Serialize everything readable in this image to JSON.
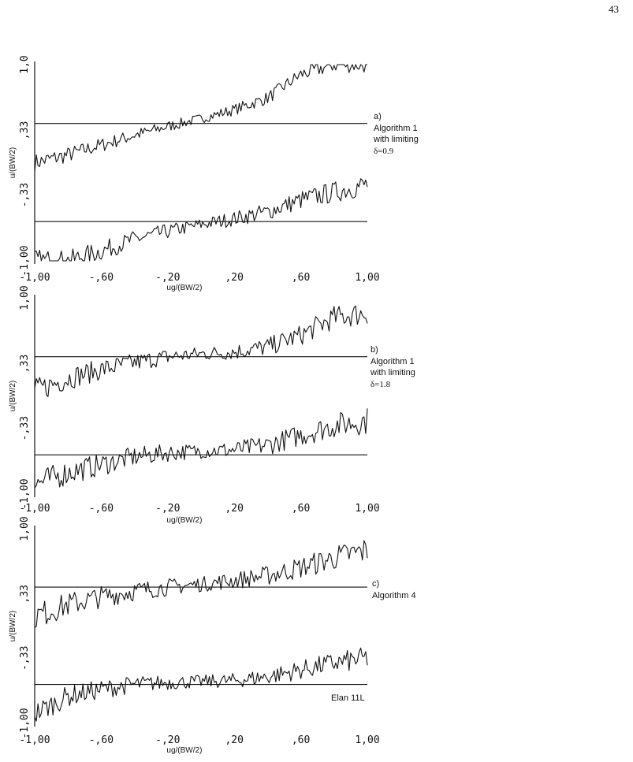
{
  "page_number": "43",
  "footnote": "Elan 11L",
  "chart_data": [
    {
      "type": "line",
      "panel": "a)",
      "annotation": [
        "a)",
        "Algorithm 1",
        "with limiting",
        "δ=0.9"
      ],
      "xlabel": "ug/(BW/2)",
      "ylabel": "u/(BW/2)",
      "xlim": [
        -1.0,
        1.0
      ],
      "ylim": [
        -1.0,
        1.0
      ],
      "xticks": [
        "-1,00",
        "-,60",
        "-,20",
        ",20",
        ",60",
        "1,00"
      ],
      "yticks": [
        "-1,00",
        "-,33",
        ",33",
        "1,0"
      ],
      "reference_lines": [
        0.4,
        -0.6
      ],
      "grid": false,
      "series": [
        {
          "x": [
            -1.0,
            -0.8,
            -0.6,
            -0.4,
            -0.2,
            0.0,
            0.2,
            0.4,
            0.6,
            0.8,
            1.0
          ],
          "y": [
            0.0,
            0.08,
            0.18,
            0.28,
            0.37,
            0.45,
            0.54,
            0.66,
            0.9,
            1.0,
            1.0
          ]
        },
        {
          "x": [
            -1.0,
            -0.8,
            -0.6,
            -0.4,
            -0.2,
            0.0,
            0.2,
            0.4,
            0.6,
            0.8,
            1.0
          ],
          "y": [
            -1.0,
            -1.0,
            -0.9,
            -0.78,
            -0.7,
            -0.63,
            -0.57,
            -0.5,
            -0.38,
            -0.3,
            -0.22
          ]
        }
      ]
    },
    {
      "type": "line",
      "panel": "b)",
      "annotation": [
        "b)",
        "Algorithm 1",
        "with limiting",
        "δ=1.8"
      ],
      "xlabel": "ug/(BW/2)",
      "ylabel": "u/(BW/2)",
      "xlim": [
        -1.0,
        1.0
      ],
      "ylim": [
        -1.0,
        1.0
      ],
      "xticks": [
        "-1,00",
        "-,60",
        "-,20",
        ",20",
        ",60",
        "1,00"
      ],
      "yticks": [
        "-1,00",
        "-,33",
        ",33",
        "1,00"
      ],
      "reference_lines": [
        0.4,
        -0.6
      ],
      "grid": false,
      "series": [
        {
          "x": [
            -1.0,
            -0.8,
            -0.6,
            -0.4,
            -0.2,
            0.0,
            0.2,
            0.4,
            0.6,
            0.8,
            1.0
          ],
          "y": [
            0.05,
            0.18,
            0.27,
            0.34,
            0.4,
            0.43,
            0.45,
            0.5,
            0.62,
            0.8,
            0.85
          ]
        },
        {
          "x": [
            -1.0,
            -0.8,
            -0.6,
            -0.4,
            -0.2,
            0.0,
            0.2,
            0.4,
            0.6,
            0.8,
            1.0
          ],
          "y": [
            -0.9,
            -0.78,
            -0.7,
            -0.62,
            -0.58,
            -0.56,
            -0.55,
            -0.5,
            -0.4,
            -0.3,
            -0.25
          ]
        }
      ]
    },
    {
      "type": "line",
      "panel": "c)",
      "annotation": [
        "c)",
        "Algorithm 4"
      ],
      "xlabel": "ug/(BW/2)",
      "ylabel": "u/(BW/2)",
      "xlim": [
        -1.0,
        1.0
      ],
      "ylim": [
        -1.0,
        1.0
      ],
      "xticks": [
        "-1,00",
        "-,60",
        "-,20",
        ",20",
        ",60",
        "1,00"
      ],
      "yticks": [
        "-1,00",
        "-,33",
        ",33",
        "1,00"
      ],
      "reference_lines": [
        0.4,
        -0.6
      ],
      "grid": false,
      "series": [
        {
          "x": [
            -1.0,
            -0.8,
            -0.6,
            -0.4,
            -0.2,
            0.0,
            0.2,
            0.4,
            0.6,
            0.8,
            1.0
          ],
          "y": [
            0.1,
            0.22,
            0.3,
            0.36,
            0.4,
            0.43,
            0.47,
            0.52,
            0.6,
            0.7,
            0.78
          ]
        },
        {
          "x": [
            -1.0,
            -0.8,
            -0.6,
            -0.4,
            -0.2,
            0.0,
            0.2,
            0.4,
            0.6,
            0.8,
            1.0
          ],
          "y": [
            -0.9,
            -0.72,
            -0.65,
            -0.6,
            -0.58,
            -0.57,
            -0.56,
            -0.52,
            -0.45,
            -0.38,
            -0.33
          ]
        }
      ]
    }
  ]
}
